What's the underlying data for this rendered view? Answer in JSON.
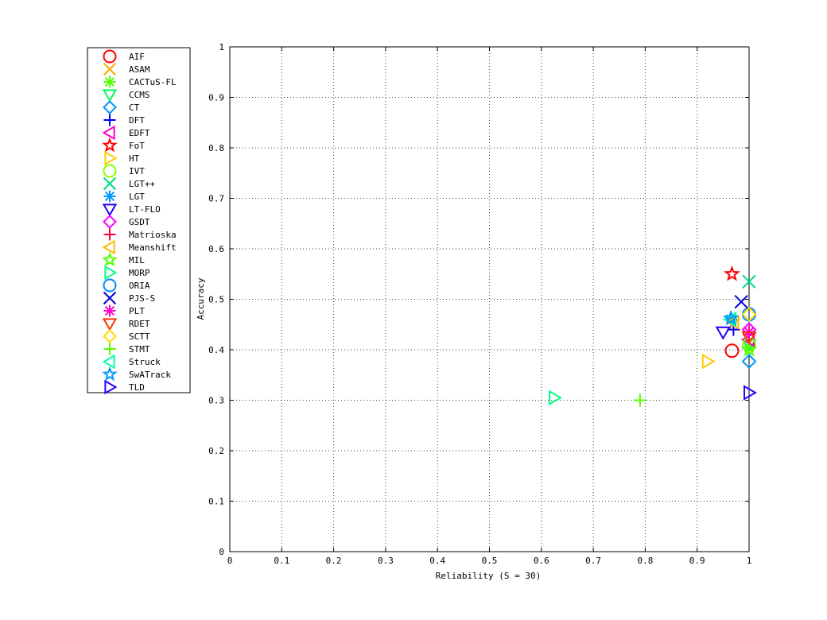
{
  "chart_data": {
    "type": "scatter",
    "xlabel": "Reliability (S = 30)",
    "ylabel": "Accuracy",
    "xlim": [
      0,
      1
    ],
    "ylim": [
      0,
      1
    ],
    "x_ticks": [
      "0",
      "0.1",
      "0.2",
      "0.3",
      "0.4",
      "0.5",
      "0.6",
      "0.7",
      "0.8",
      "0.9",
      "1"
    ],
    "y_ticks": [
      "0",
      "0.1",
      "0.2",
      "0.3",
      "0.4",
      "0.5",
      "0.6",
      "0.7",
      "0.8",
      "0.9",
      "1"
    ],
    "grid": true,
    "legend_position": "left-outside",
    "series": [
      {
        "name": "AIF",
        "marker": "circle",
        "color": "#ff0000",
        "x": 0.967,
        "y": 0.398
      },
      {
        "name": "ASAM",
        "marker": "x",
        "color": "#ffaa00",
        "x": 0.97,
        "y": 0.45
      },
      {
        "name": "CACTuS-FL",
        "marker": "asterisk",
        "color": "#55ff00",
        "x": 1.0,
        "y": 0.405
      },
      {
        "name": "CCMS",
        "marker": "triangle-down",
        "color": "#00ff55",
        "x": 1.0,
        "y": 0.41
      },
      {
        "name": "CT",
        "marker": "diamond",
        "color": "#0099ff",
        "x": 1.0,
        "y": 0.377
      },
      {
        "name": "DFT",
        "marker": "plus",
        "color": "#0000ff",
        "x": 0.97,
        "y": 0.44
      },
      {
        "name": "EDFT",
        "marker": "triangle-left",
        "color": "#ff00cc",
        "x": 1.0,
        "y": 0.42
      },
      {
        "name": "FoT",
        "marker": "pentagram",
        "color": "#ff0000",
        "x": 0.967,
        "y": 0.55
      },
      {
        "name": "HT",
        "marker": "triangle-right",
        "color": "#ffcc00",
        "x": 0.92,
        "y": 0.377
      },
      {
        "name": "IVT",
        "marker": "circle",
        "color": "#88ff00",
        "x": 1.0,
        "y": 0.41
      },
      {
        "name": "LGT++",
        "marker": "x",
        "color": "#00dd88",
        "x": 1.0,
        "y": 0.535
      },
      {
        "name": "LGT",
        "marker": "asterisk",
        "color": "#0099ff",
        "x": 0.965,
        "y": 0.46
      },
      {
        "name": "LT-FLO",
        "marker": "triangle-down",
        "color": "#2200ff",
        "x": 0.95,
        "y": 0.435
      },
      {
        "name": "GSDT",
        "marker": "diamond",
        "color": "#ff00ff",
        "x": 1.0,
        "y": 0.44
      },
      {
        "name": "Matrioska",
        "marker": "plus",
        "color": "#ff0033",
        "x": 1.0,
        "y": 0.43
      },
      {
        "name": "Meanshift",
        "marker": "triangle-left",
        "color": "#ffbb00",
        "x": 0.97,
        "y": 0.455
      },
      {
        "name": "MIL",
        "marker": "pentagram",
        "color": "#55ff00",
        "x": 1.0,
        "y": 0.4
      },
      {
        "name": "MORP",
        "marker": "triangle-right",
        "color": "#00ff88",
        "x": 0.625,
        "y": 0.305
      },
      {
        "name": "ORIA",
        "marker": "circle",
        "color": "#0088ff",
        "x": 1.0,
        "y": 0.47
      },
      {
        "name": "PJS-S",
        "marker": "x",
        "color": "#0000dd",
        "x": 0.985,
        "y": 0.495
      },
      {
        "name": "PLT",
        "marker": "asterisk",
        "color": "#ff00cc",
        "x": 1.0,
        "y": 0.435
      },
      {
        "name": "RDET",
        "marker": "triangle-down",
        "color": "#ff3300",
        "x": 1.0,
        "y": 0.425
      },
      {
        "name": "SCTT",
        "marker": "diamond",
        "color": "#ffdd00",
        "x": 1.0,
        "y": 0.47
      },
      {
        "name": "STMT",
        "marker": "plus",
        "color": "#55ff00",
        "x": 0.79,
        "y": 0.3
      },
      {
        "name": "Struck",
        "marker": "triangle-left",
        "color": "#00ffaa",
        "x": 0.965,
        "y": 0.46
      },
      {
        "name": "SwATrack",
        "marker": "pentagram",
        "color": "#0099ff",
        "x": 0.965,
        "y": 0.462
      },
      {
        "name": "TLD",
        "marker": "triangle-right",
        "color": "#3300ff",
        "x": 1.0,
        "y": 0.315
      }
    ]
  }
}
